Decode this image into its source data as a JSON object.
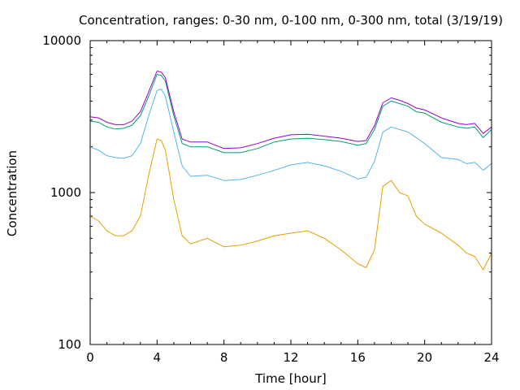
{
  "chart_data": {
    "type": "line",
    "title": "Concentration, ranges: 0-30 nm, 0-100 nm, 0-300 nm, total (3/19/19)",
    "xlabel": "Time [hour]",
    "ylabel": "Concentration",
    "xlim": [
      0,
      24
    ],
    "ylim": [
      100,
      10000
    ],
    "y_scale": "log",
    "x_ticks": [
      "0",
      "4",
      "8",
      "12",
      "16",
      "20",
      "24"
    ],
    "y_ticks": [
      "100",
      "1000",
      "10000"
    ],
    "grid": false,
    "legend": "none",
    "x": [
      0,
      0.5,
      1,
      1.5,
      2,
      2.5,
      3,
      3.5,
      4,
      4.25,
      4.5,
      5,
      5.5,
      6,
      7,
      8,
      9,
      10,
      11,
      12,
      13,
      14,
      15,
      16,
      16.5,
      17,
      17.5,
      18,
      18.5,
      19,
      19.5,
      20,
      21,
      22,
      22.5,
      23,
      23.5,
      24
    ],
    "series": [
      {
        "color": "#e69f00",
        "values": [
          700,
          650,
          560,
          520,
          520,
          560,
          700,
          1300,
          2250,
          2200,
          1900,
          900,
          520,
          460,
          500,
          440,
          450,
          480,
          520,
          540,
          560,
          500,
          420,
          340,
          320,
          420,
          1100,
          1200,
          1000,
          950,
          700,
          620,
          540,
          450,
          400,
          380,
          310,
          400
        ]
      },
      {
        "color": "#56b4e9",
        "values": [
          2000,
          1900,
          1750,
          1700,
          1680,
          1750,
          2100,
          3200,
          4700,
          4800,
          4300,
          2500,
          1500,
          1280,
          1300,
          1200,
          1220,
          1300,
          1400,
          1520,
          1580,
          1500,
          1380,
          1230,
          1260,
          1600,
          2500,
          2700,
          2600,
          2500,
          2300,
          2100,
          1700,
          1650,
          1550,
          1580,
          1400,
          1550
        ]
      },
      {
        "color": "#009e73",
        "values": [
          2950,
          2900,
          2700,
          2620,
          2650,
          2780,
          3200,
          4300,
          6000,
          5900,
          5400,
          3200,
          2100,
          2000,
          2000,
          1830,
          1830,
          1950,
          2150,
          2250,
          2280,
          2230,
          2170,
          2050,
          2100,
          2600,
          3700,
          4000,
          3850,
          3700,
          3400,
          3330,
          2900,
          2700,
          2650,
          2700,
          2300,
          2600
        ]
      },
      {
        "color": "#9400d3",
        "values": [
          3150,
          3100,
          2900,
          2800,
          2800,
          2950,
          3400,
          4600,
          6300,
          6200,
          5700,
          3400,
          2250,
          2150,
          2150,
          1950,
          1970,
          2100,
          2280,
          2400,
          2420,
          2350,
          2280,
          2170,
          2200,
          2750,
          3900,
          4200,
          4050,
          3850,
          3600,
          3500,
          3100,
          2850,
          2800,
          2850,
          2450,
          2700
        ]
      }
    ]
  }
}
